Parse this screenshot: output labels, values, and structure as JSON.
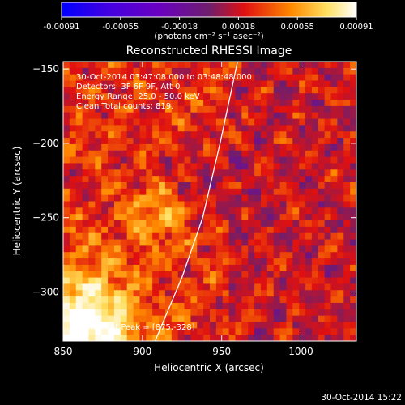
{
  "colorbar": {
    "ticks": [
      "-0.00091",
      "-0.00055",
      "-0.00018",
      "0.00018",
      "0.00055",
      "0.00091"
    ],
    "units": "(photons cm⁻² s⁻¹ asec⁻²)"
  },
  "chart_data": {
    "type": "heatmap",
    "title": "Reconstructed RHESSI Image",
    "xlabel": "Heliocentric X (arcsec)",
    "ylabel": "Heliocentric Y (arcsec)",
    "xlim": [
      850,
      1035
    ],
    "ylim": [
      -333,
      -145
    ],
    "xticks": [
      850,
      900,
      950,
      1000
    ],
    "yticks": [
      -150,
      -200,
      -250,
      -300
    ],
    "xtick_labels": [
      "850",
      "900",
      "950",
      "1000"
    ],
    "ytick_labels": [
      "−150",
      "−200",
      "−250",
      "−300"
    ],
    "color_range": [
      -0.00091,
      0.00091
    ],
    "colormap": [
      "#0000ff",
      "#6a00c0",
      "#6e1e6e",
      "#e01010",
      "#ff8a00",
      "#ffe060",
      "#ffffff"
    ],
    "limb_curve": [
      [
        908,
        -333
      ],
      [
        925,
        -290
      ],
      [
        938,
        -250
      ],
      [
        949,
        -200
      ],
      [
        957,
        -160
      ],
      [
        960,
        -145
      ]
    ],
    "annotations": [
      "30-Oct-2014 03:47:08.000 to 03:48:48.000",
      "Detectors: 3F 6F 9F, Att 0",
      "Energy Range: 25.0 - 50.0 keV",
      "Clean    Total counts: 819."
    ],
    "peak_label": "Position at Peak = [875,-328]"
  },
  "timestamp": "30-Oct-2014 15:22"
}
